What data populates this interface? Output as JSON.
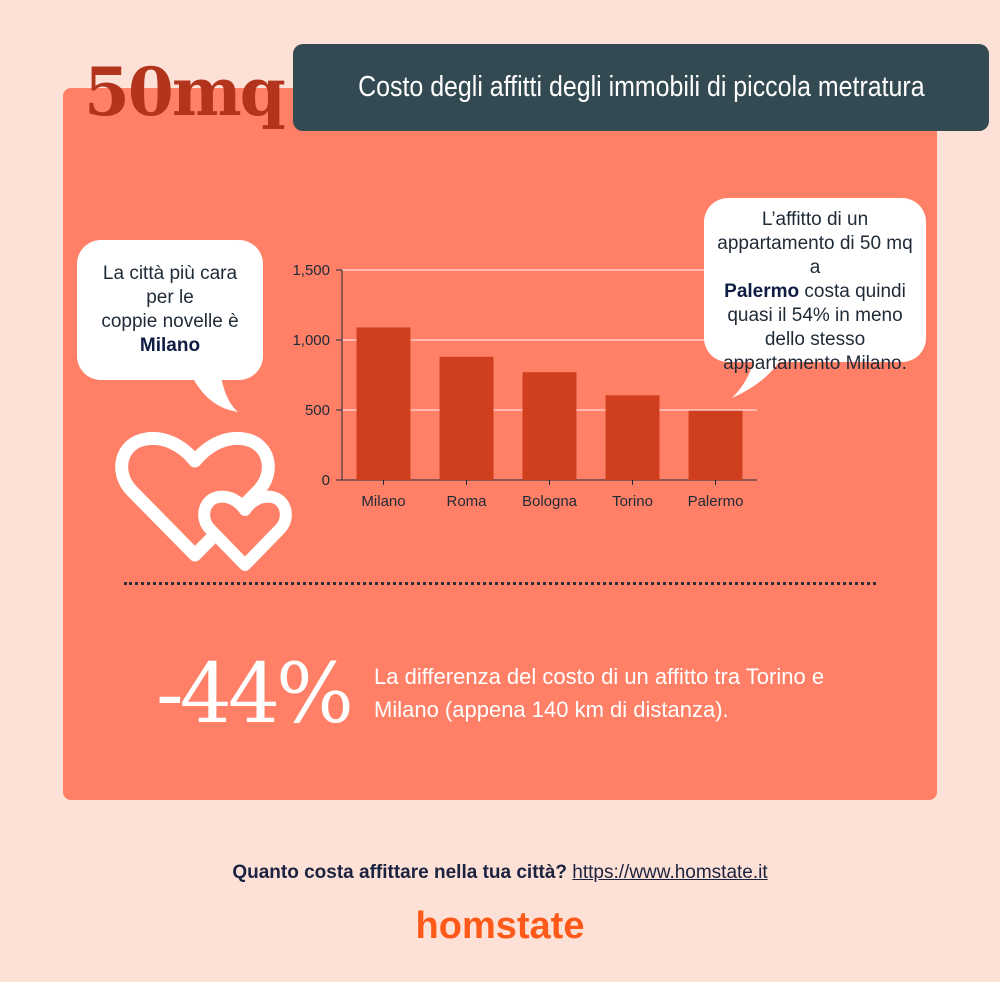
{
  "brand_title": "50mq",
  "header_title": "Costo degli affitti degli immobili di piccola metratura",
  "left_bubble": {
    "line1": "La città più cara",
    "line2": "per le",
    "line3": "coppie novelle è",
    "highlight": "Milano"
  },
  "right_bubble": {
    "line1": "L’affitto di un",
    "line2": "appartamento di 50 mq a",
    "highlight": "Palermo",
    "line3_rest": " costa quindi",
    "line4": "quasi il 54% in meno",
    "line5": "dello stesso",
    "line6": "appartamento Milano."
  },
  "chart_data": {
    "type": "bar",
    "categories": [
      "Milano",
      "Roma",
      "Bologna",
      "Torino",
      "Palermo"
    ],
    "values": [
      1090,
      880,
      770,
      605,
      495
    ],
    "ylim": [
      0,
      1500
    ],
    "yticks": [
      0,
      500,
      1000,
      1500
    ],
    "ytick_labels": [
      "0",
      "500",
      "1,000",
      "1,500"
    ],
    "grid": true,
    "title": "",
    "xlabel": "",
    "ylabel": "",
    "bar_color": "#cf3f1e"
  },
  "stat": {
    "value": "-44%",
    "text": "La differenza del costo di un affitto tra Torino e Milano (appena 140 km di distanza)."
  },
  "footer": {
    "question": "Quanto costa affittare nella tua città?",
    "link": "https://www.homstate.it"
  },
  "logo": "homstate",
  "colors": {
    "background": "#fde1d6",
    "panel": "#ff8067",
    "header": "#344a52",
    "accent": "#b3341d",
    "brand": "#ff5a1a"
  }
}
